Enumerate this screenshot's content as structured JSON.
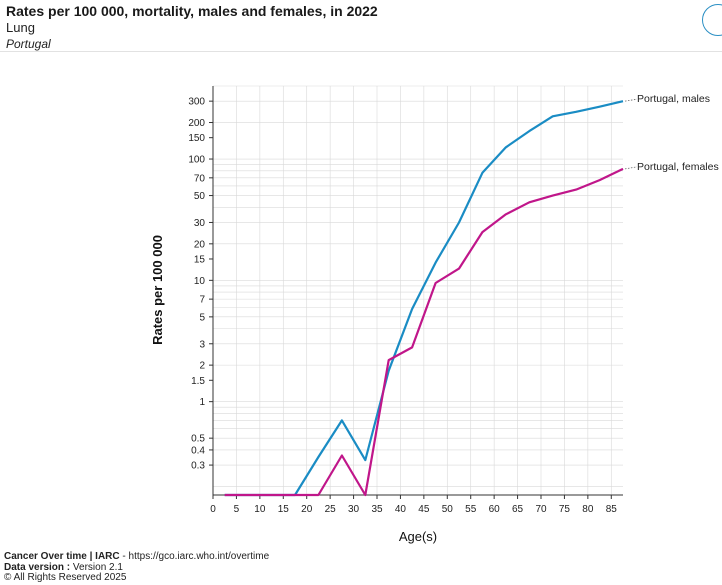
{
  "header": {
    "title": "Rates per 100 000, mortality, males and females, in 2022",
    "subtitle": "Lung",
    "population": "Portugal"
  },
  "footer": {
    "source_name": "Cancer Over time | IARC",
    "source_url": " - https://gco.iarc.who.int/overtime",
    "data_version_label": "Data version :",
    "data_version_value": " Version 2.1",
    "copyright": "© All Rights Reserved 2025"
  },
  "colors": {
    "males": "#1a8cc4",
    "females": "#c0168a",
    "grid": "#d9d9d9",
    "axis": "#333333"
  },
  "chart_data": {
    "type": "line",
    "xlabel": "Age(s)",
    "ylabel": "Rates per 100 000",
    "y_scale": "log",
    "ylim": [
      0.17,
      400
    ],
    "xlim": [
      0,
      87.5
    ],
    "x_ticks": [
      0,
      5,
      10,
      15,
      20,
      25,
      30,
      35,
      40,
      45,
      50,
      55,
      60,
      65,
      70,
      75,
      80,
      85
    ],
    "y_ticks": [
      0.3,
      0.4,
      0.5,
      1,
      1.5,
      2,
      3,
      5,
      7,
      10,
      15,
      20,
      30,
      50,
      70,
      100,
      150,
      200,
      300
    ],
    "grid": true,
    "x": [
      2.5,
      7.5,
      12.5,
      17.5,
      22.5,
      27.5,
      32.5,
      37.5,
      42.5,
      47.5,
      52.5,
      57.5,
      62.5,
      67.5,
      72.5,
      77.5,
      82.5,
      87.5
    ],
    "series": [
      {
        "name": "Portugal, males",
        "values": [
          0.17,
          0.17,
          0.17,
          0.17,
          0.35,
          0.7,
          0.33,
          1.8,
          5.8,
          14,
          30,
          77,
          125,
          170,
          225,
          245,
          270,
          300
        ]
      },
      {
        "name": "Portugal, females",
        "values": [
          0.17,
          0.17,
          0.17,
          0.17,
          0.17,
          0.36,
          0.17,
          2.2,
          2.8,
          9.5,
          12.5,
          25,
          35,
          44,
          50,
          56,
          67,
          83
        ]
      }
    ]
  }
}
